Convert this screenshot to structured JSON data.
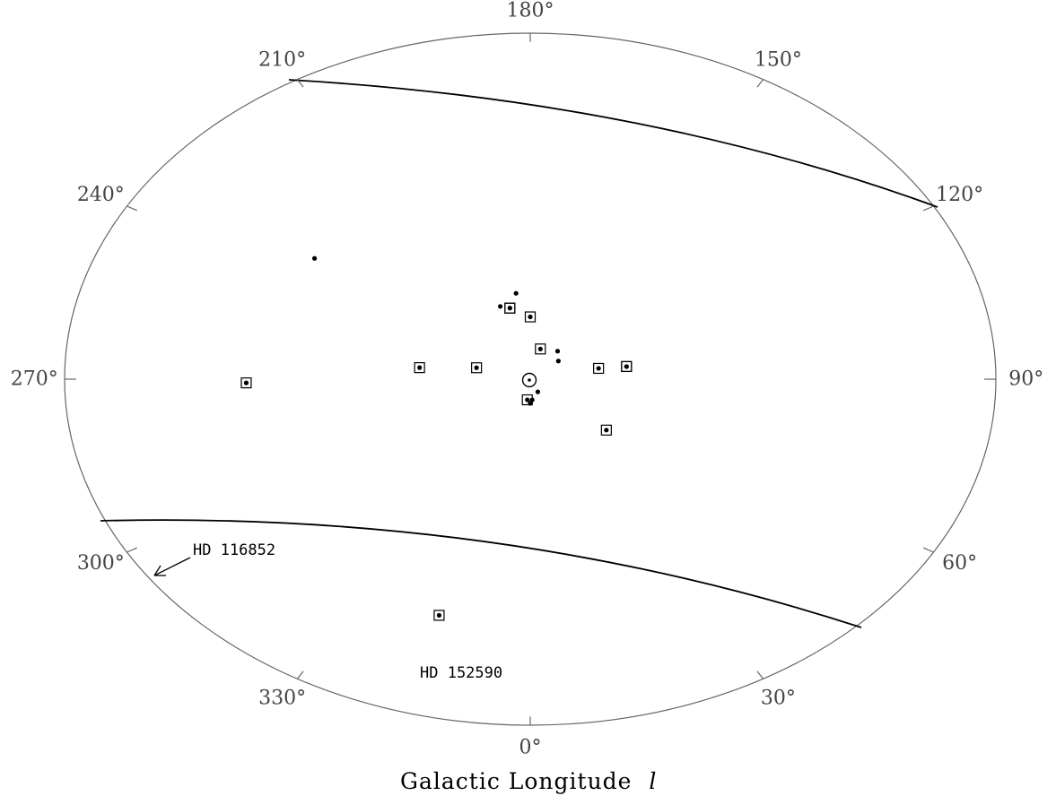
{
  "chart_data": {
    "type": "scatter",
    "projection": "polar sky plot (galactic longitude around the rim, Sun at centre)",
    "xlabel": "Galactic Longitude",
    "xlabel_symbol": "l",
    "tick_labels": [
      {
        "deg": 0,
        "label": "0°"
      },
      {
        "deg": 30,
        "label": "30°"
      },
      {
        "deg": 60,
        "label": "60°"
      },
      {
        "deg": 90,
        "label": "90°"
      },
      {
        "deg": 120,
        "label": "120°"
      },
      {
        "deg": 150,
        "label": "150°"
      },
      {
        "deg": 180,
        "label": "180°"
      },
      {
        "deg": 210,
        "label": "210°"
      },
      {
        "deg": 240,
        "label": "240°"
      },
      {
        "deg": 270,
        "label": "270°"
      },
      {
        "deg": 300,
        "label": "300°"
      },
      {
        "deg": 330,
        "label": "330°"
      }
    ],
    "sun_marker": "sun-symbol",
    "series": [
      {
        "marker": "dot-in-square",
        "points": [
          {
            "l": 271,
            "r": 0.61
          },
          {
            "l": 262,
            "r": 0.24
          },
          {
            "l": 254,
            "r": 0.12
          },
          {
            "l": 354,
            "r": 0.06
          },
          {
            "l": 192,
            "r": 0.21
          },
          {
            "l": 192,
            "r": 0.21
          },
          {
            "l": 180,
            "r": 0.18
          },
          {
            "l": 166,
            "r": 0.09
          },
          {
            "l": 102,
            "r": 0.15
          },
          {
            "l": 100,
            "r": 0.21
          },
          {
            "l": 100,
            "r": 0.21
          },
          {
            "l": 48,
            "r": 0.22
          },
          {
            "l": 344,
            "r": 0.71
          }
        ]
      },
      {
        "marker": "dot",
        "points": [
          {
            "l": 233,
            "r": 0.58
          },
          {
            "l": 187,
            "r": 0.25
          },
          {
            "l": 197,
            "r": 0.22
          },
          {
            "l": 144,
            "r": 0.1
          },
          {
            "l": 131,
            "r": 0.08
          },
          {
            "l": 0,
            "r": 0.07
          },
          {
            "l": 4,
            "r": 0.06
          },
          {
            "l": 24,
            "r": 0.04
          }
        ]
      }
    ],
    "annotations": [
      {
        "label": "HD 116852",
        "arrow": true
      },
      {
        "label": "HD 152590"
      }
    ]
  }
}
